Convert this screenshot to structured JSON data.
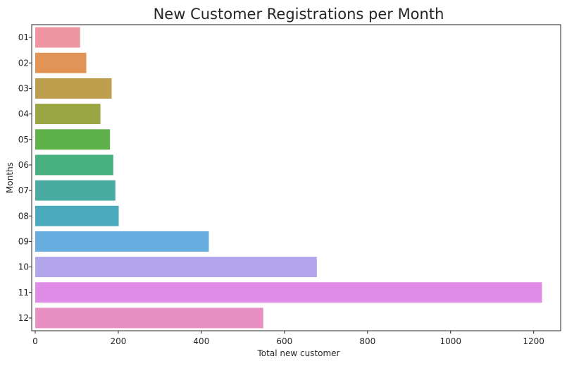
{
  "chart_data": {
    "type": "bar",
    "orientation": "horizontal",
    "title": "New Customer Registrations per Month",
    "xlabel": "Total new customer",
    "ylabel": "Months",
    "categories": [
      "01",
      "02",
      "03",
      "04",
      "05",
      "06",
      "07",
      "08",
      "09",
      "10",
      "11",
      "12"
    ],
    "values": [
      108,
      123,
      184,
      157,
      180,
      188,
      193,
      201,
      418,
      678,
      1220,
      549
    ],
    "xlim": [
      0,
      1265
    ],
    "xticks": [
      0,
      200,
      400,
      600,
      800,
      1000,
      1200
    ],
    "grid": false,
    "colors": [
      "#ef95a1",
      "#e29457",
      "#bc9e4c",
      "#9aa543",
      "#5eb249",
      "#49b180",
      "#4aaba3",
      "#4ba9be",
      "#67ade0",
      "#b3a5ec",
      "#de8ce6",
      "#e890c4"
    ]
  }
}
